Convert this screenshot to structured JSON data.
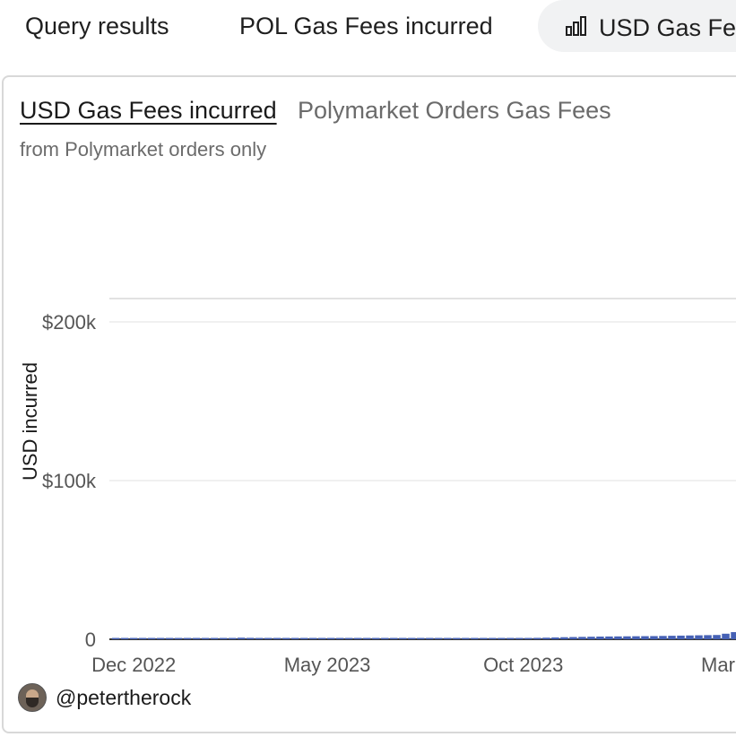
{
  "tabs": [
    {
      "label": "Query results"
    },
    {
      "label": "POL Gas Fees incurred"
    },
    {
      "label": "USD Gas Fe",
      "icon": "bar-chart-icon",
      "active": true
    }
  ],
  "card": {
    "title": "USD Gas Fees incurred",
    "subtitle": "Polymarket Orders Gas Fees",
    "description": "from Polymarket orders only"
  },
  "author": {
    "name": "@petertherock",
    "avatar": "avatar-icon"
  },
  "chart_data": {
    "type": "bar",
    "ylabel": "USD incurred",
    "xlabel": "",
    "ylim": [
      0,
      220000
    ],
    "y_ticks": [
      {
        "value": 0,
        "label": "0"
      },
      {
        "value": 100000,
        "label": "$100k"
      },
      {
        "value": 200000,
        "label": "$200k"
      }
    ],
    "x_ticks": [
      {
        "date": "2022-12",
        "label": "Dec 2022"
      },
      {
        "date": "2023-05",
        "label": "May 2023"
      },
      {
        "date": "2023-10",
        "label": "Oct 2023"
      },
      {
        "date": "2024-03",
        "label": "Mar"
      }
    ],
    "xlim": [
      "2022-11-12",
      "2024-03-15"
    ],
    "grid": true,
    "bar_color": "#4661b5",
    "series": [
      {
        "x": [
          "2022-11-14",
          "2022-11-21",
          "2022-11-28",
          "2022-12-05",
          "2022-12-12",
          "2022-12-19",
          "2022-12-26",
          "2023-01-02",
          "2023-01-09",
          "2023-01-16",
          "2023-01-23",
          "2023-01-30",
          "2023-02-06",
          "2023-02-13",
          "2023-02-20",
          "2023-02-27",
          "2023-03-06",
          "2023-03-13",
          "2023-03-20",
          "2023-03-27",
          "2023-04-03",
          "2023-04-10",
          "2023-04-17",
          "2023-04-24",
          "2023-05-01",
          "2023-05-08",
          "2023-05-15",
          "2023-05-22",
          "2023-05-29",
          "2023-06-05",
          "2023-06-12",
          "2023-06-19",
          "2023-06-26",
          "2023-07-03",
          "2023-07-10",
          "2023-07-17",
          "2023-07-24",
          "2023-07-31",
          "2023-08-07",
          "2023-08-14",
          "2023-08-21",
          "2023-08-28",
          "2023-09-04",
          "2023-09-11",
          "2023-09-18",
          "2023-09-25",
          "2023-10-02",
          "2023-10-09",
          "2023-10-16",
          "2023-10-23",
          "2023-10-30",
          "2023-11-06",
          "2023-11-13",
          "2023-11-20",
          "2023-11-27",
          "2023-12-04",
          "2023-12-11",
          "2023-12-18",
          "2023-12-25",
          "2024-01-01",
          "2024-01-08",
          "2024-01-15",
          "2024-01-22",
          "2024-01-29",
          "2024-02-05",
          "2024-02-12",
          "2024-02-19",
          "2024-02-26",
          "2024-03-04",
          "2024-03-11"
        ],
        "values": [
          400,
          450,
          420,
          500,
          380,
          420,
          390,
          450,
          480,
          500,
          520,
          600,
          700,
          800,
          1000,
          900,
          700,
          650,
          600,
          550,
          500,
          520,
          560,
          580,
          600,
          560,
          520,
          500,
          480,
          460,
          450,
          470,
          500,
          480,
          460,
          450,
          470,
          500,
          520,
          540,
          560,
          580,
          600,
          640,
          700,
          760,
          820,
          900,
          1000,
          1150,
          1300,
          1400,
          1500,
          1600,
          1700,
          1750,
          1800,
          1850,
          1900,
          1950,
          2000,
          2100,
          2200,
          2300,
          2400,
          2500,
          2600,
          2700,
          3500,
          4500
        ]
      }
    ]
  }
}
